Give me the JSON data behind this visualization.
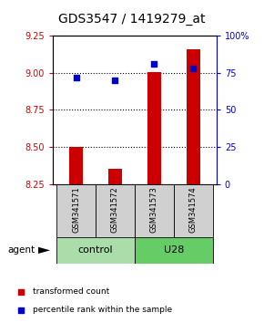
{
  "title": "GDS3547 / 1419279_at",
  "samples": [
    "GSM341571",
    "GSM341572",
    "GSM341573",
    "GSM341574"
  ],
  "transformed_counts": [
    8.502,
    8.353,
    9.003,
    9.155
  ],
  "percentile_ranks": [
    72,
    70,
    81,
    78
  ],
  "bar_color": "#cc0000",
  "dot_color": "#0000cc",
  "left_ylim": [
    8.25,
    9.25
  ],
  "right_ylim": [
    0,
    100
  ],
  "left_yticks": [
    8.25,
    8.5,
    8.75,
    9.0,
    9.25
  ],
  "right_yticks": [
    0,
    25,
    50,
    75,
    100
  ],
  "right_yticklabels": [
    "0",
    "25",
    "50",
    "75",
    "100%"
  ],
  "hlines": [
    8.5,
    8.75,
    9.0
  ],
  "groups": [
    {
      "label": "control",
      "samples": [
        0,
        1
      ],
      "color": "#aaddaa"
    },
    {
      "label": "U28",
      "samples": [
        2,
        3
      ],
      "color": "#66cc66"
    }
  ],
  "agent_label": "agent",
  "legend_red": "transformed count",
  "legend_blue": "percentile rank within the sample",
  "bar_width": 0.35,
  "left_axis_color": "#cc0000",
  "right_axis_color": "#0000cc",
  "title_fontsize": 10,
  "tick_fontsize": 7,
  "sample_fontsize": 6,
  "group_fontsize": 8,
  "legend_fontsize": 6.5
}
